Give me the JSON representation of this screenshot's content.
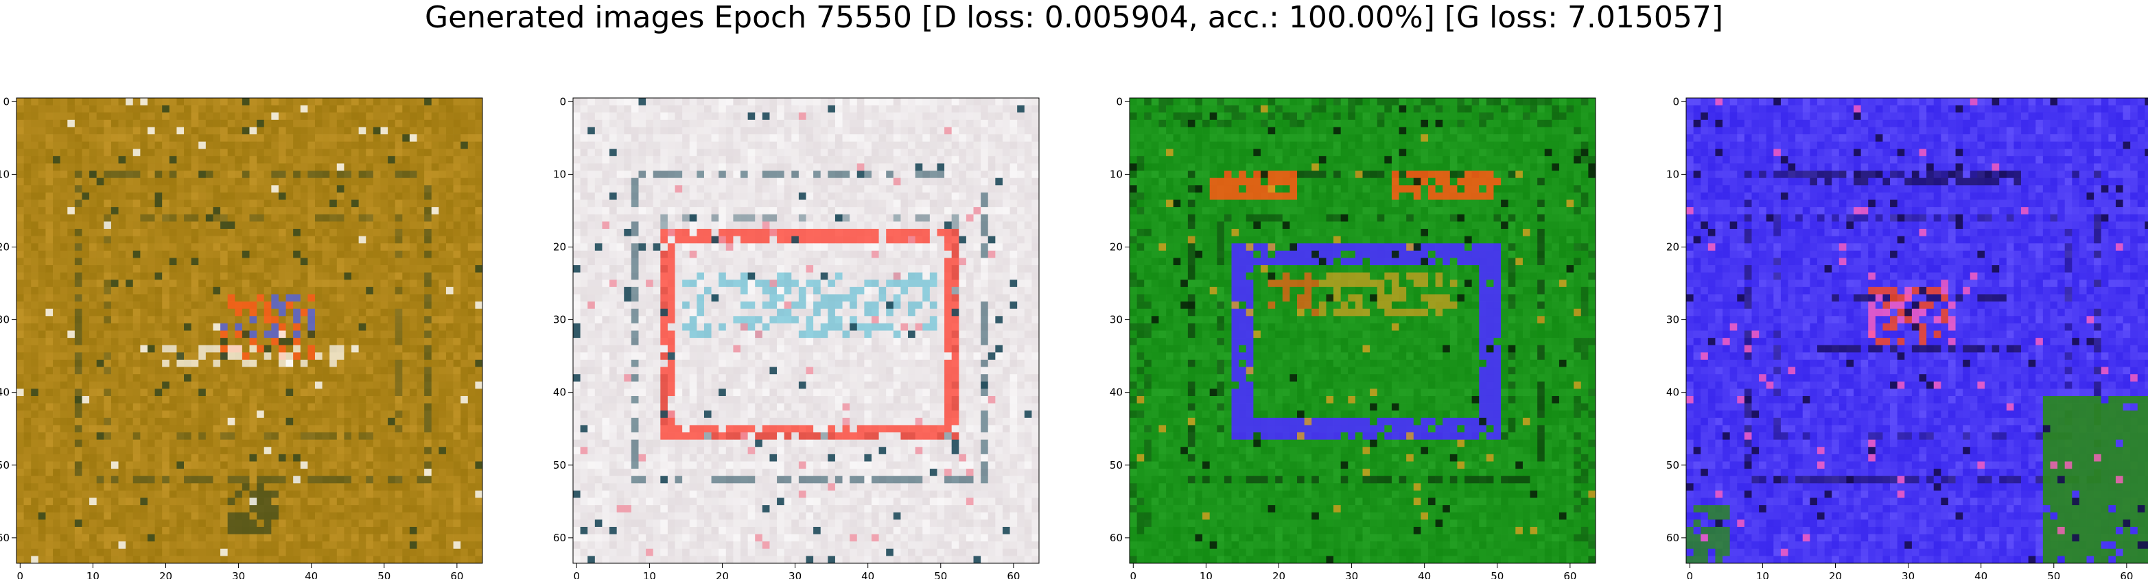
{
  "title": "Generated images Epoch 75550 [D loss: 0.005904, acc.: 100.00%] [G loss: 7.015057]",
  "chart_data": [
    {
      "type": "heatmap",
      "title": "",
      "xlim": [
        -0.5,
        63.5
      ],
      "ylim": [
        63.5,
        -0.5
      ],
      "xticks": [
        0,
        10,
        20,
        30,
        40,
        50,
        60
      ],
      "yticks": [
        0,
        10,
        20,
        30,
        40,
        50,
        60
      ],
      "pixels": "64x64 RGB generated image",
      "palette": {
        "base": "#a07a10",
        "light": "#c99a2c",
        "dark": "#3d4a1c",
        "accent": "#ff5a1a",
        "accent2": "#5060e0",
        "highlight": "#ffffff"
      }
    },
    {
      "type": "heatmap",
      "title": "",
      "xlim": [
        -0.5,
        63.5
      ],
      "ylim": [
        63.5,
        -0.5
      ],
      "xticks": [
        0,
        10,
        20,
        30,
        40,
        50,
        60
      ],
      "yticks": [
        0,
        10,
        20,
        30,
        40,
        50,
        60
      ],
      "pixels": "64x64 RGB generated image",
      "palette": {
        "base": "#e4dde0",
        "light": "#ffffff",
        "dark": "#1e4a5a",
        "accent": "#ff3a2a",
        "accent2": "#4fb8d0",
        "highlight": "#f090a0"
      }
    },
    {
      "type": "heatmap",
      "title": "",
      "xlim": [
        -0.5,
        63.5
      ],
      "ylim": [
        63.5,
        -0.5
      ],
      "xticks": [
        0,
        10,
        20,
        30,
        40,
        50,
        60
      ],
      "yticks": [
        0,
        10,
        20,
        30,
        40,
        50,
        60
      ],
      "pixels": "64x64 RGB generated image",
      "palette": {
        "base": "#148c14",
        "light": "#2aa82a",
        "dark": "#082408",
        "accent": "#ff5a14",
        "accent2": "#4a30ff",
        "highlight": "#d8a020"
      }
    },
    {
      "type": "heatmap",
      "title": "",
      "xlim": [
        -0.5,
        63.5
      ],
      "ylim": [
        63.5,
        -0.5
      ],
      "xticks": [
        0,
        10,
        20,
        30,
        40,
        50,
        60
      ],
      "yticks": [
        0,
        10,
        20,
        30,
        40,
        50,
        60
      ],
      "pixels": "64x64 RGB generated image",
      "palette": {
        "base": "#3a28ee",
        "light": "#6a5aff",
        "dark": "#160c50",
        "accent": "#ff4a18",
        "accent2": "#2a8a1a",
        "highlight": "#ff60c0"
      }
    }
  ]
}
